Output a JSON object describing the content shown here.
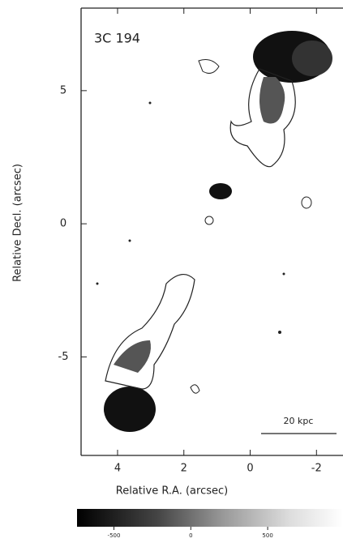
{
  "chart_data": {
    "type": "contour",
    "title": "3C 194",
    "x_label": "Relative R.A. (arcsec)",
    "y_label": "Relative Decl. (arcsec)",
    "xlim": [
      5.1,
      -2.8
    ],
    "xticks": [
      4,
      2,
      0,
      -2
    ],
    "ylim": [
      -8.7,
      8.1
    ],
    "yticks": [
      5,
      0,
      -5
    ],
    "annotation": "20 kpc",
    "colorbar": {
      "lim": [
        -740,
        990
      ],
      "ticks": [
        -500,
        0,
        500
      ]
    }
  }
}
